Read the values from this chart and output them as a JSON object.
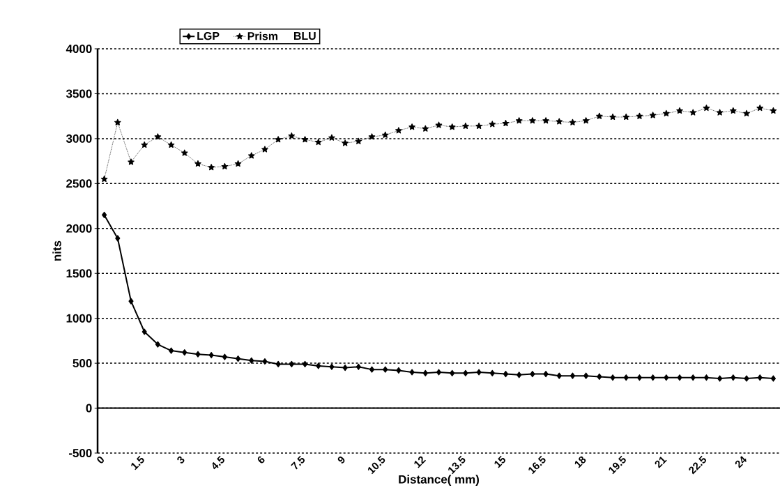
{
  "chart_data": {
    "type": "line",
    "xlabel": "Distance( mm)",
    "ylabel": "nits",
    "x": [
      0,
      0.5,
      1,
      1.5,
      2,
      2.5,
      3,
      3.5,
      4,
      4.5,
      5,
      5.5,
      6,
      6.5,
      7,
      7.5,
      8,
      8.5,
      9,
      9.5,
      10,
      10.5,
      11,
      11.5,
      12,
      12.5,
      13,
      13.5,
      14,
      14.5,
      15,
      15.5,
      16,
      16.5,
      17,
      17.5,
      18,
      18.5,
      19,
      19.5,
      20,
      20.5,
      21,
      21.5,
      22,
      22.5,
      23,
      23.5,
      24,
      24.5,
      25
    ],
    "series": [
      {
        "name": "LGP",
        "color": "#000000",
        "marker": "diamond",
        "line_style": "solid",
        "values": [
          2150,
          1890,
          1190,
          850,
          710,
          640,
          620,
          600,
          590,
          570,
          550,
          530,
          520,
          490,
          490,
          490,
          470,
          460,
          450,
          460,
          430,
          430,
          420,
          400,
          390,
          400,
          390,
          390,
          400,
          390,
          380,
          370,
          380,
          380,
          360,
          360,
          360,
          350,
          340,
          340,
          340,
          340,
          340,
          340,
          340,
          340,
          330,
          340,
          330,
          340,
          330
        ]
      },
      {
        "name": "Prism",
        "color": "#000000",
        "marker": "star",
        "line_style": "dotted",
        "values": [
          2550,
          3180,
          2740,
          2930,
          3020,
          2930,
          2840,
          2720,
          2680,
          2690,
          2720,
          2810,
          2880,
          2990,
          3030,
          2990,
          2960,
          3010,
          2950,
          2970,
          3020,
          3040,
          3090,
          3130,
          3110,
          3150,
          3130,
          3140,
          3140,
          3160,
          3170,
          3200,
          3200,
          3200,
          3190,
          3180,
          3200,
          3250,
          3240,
          3240,
          3250,
          3260,
          3280,
          3310,
          3290,
          3340,
          3290,
          3310,
          3280,
          3340,
          3310
        ]
      },
      {
        "name": "BLU",
        "values": [
          null,
          null,
          null,
          null,
          null,
          null,
          null,
          null,
          null,
          null,
          null,
          null,
          null,
          null,
          null,
          null,
          null,
          null,
          null,
          null,
          null,
          null,
          null,
          null,
          null,
          null,
          null,
          null,
          null,
          null,
          null,
          null,
          null,
          null,
          null,
          null,
          null,
          null,
          null,
          null,
          null,
          null,
          null,
          null,
          null,
          null,
          null,
          null,
          null,
          null,
          null
        ]
      }
    ],
    "ref_lines": [
      {
        "axis": "y",
        "value": 0,
        "color": "#000000",
        "line_style": "solid"
      }
    ],
    "xlim": [
      -0.25,
      25.25
    ],
    "xticks": [
      0,
      1.5,
      3,
      4.5,
      6,
      7.5,
      9,
      10.5,
      12,
      13.5,
      15,
      16.5,
      18,
      19.5,
      21,
      22.5,
      24
    ],
    "ylim": [
      -500,
      4000
    ],
    "yticks": [
      -500,
      0,
      500,
      1000,
      1500,
      2000,
      2500,
      3000,
      3500,
      4000
    ],
    "grid": "y",
    "legend": "top left"
  }
}
